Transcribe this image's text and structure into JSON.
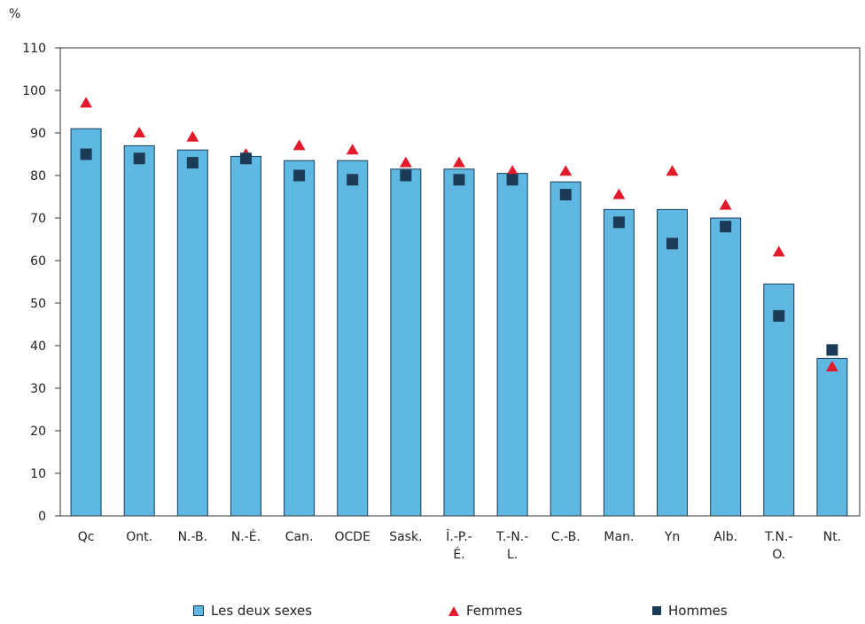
{
  "chart_data": {
    "type": "bar",
    "y_unit_label": "%",
    "ylim": [
      0,
      110
    ],
    "y_ticks": [
      0,
      10,
      20,
      30,
      40,
      50,
      60,
      70,
      80,
      90,
      100,
      110
    ],
    "grid": false,
    "legend_position": "bottom",
    "categories": [
      [
        "Qc"
      ],
      [
        "Ont."
      ],
      [
        "N.-B."
      ],
      [
        "N.-É."
      ],
      [
        "Can."
      ],
      [
        "OCDE"
      ],
      [
        "Sask."
      ],
      [
        "Î.-P.-",
        "É."
      ],
      [
        "T.-N.-",
        "L."
      ],
      [
        "C.-B."
      ],
      [
        "Man."
      ],
      [
        "Yn"
      ],
      [
        "Alb."
      ],
      [
        "T.N.-",
        "O."
      ],
      [
        "Nt."
      ]
    ],
    "series": [
      {
        "name": "Les deux sexes",
        "type": "bar",
        "color": "#5fb8e2",
        "values": [
          91,
          87,
          86,
          84.5,
          83.5,
          83.5,
          81.5,
          81.5,
          80.5,
          78.5,
          72,
          72,
          70,
          54.5,
          37
        ]
      },
      {
        "name": "Femmes",
        "type": "marker",
        "marker": "triangle",
        "color": "#e31a2c",
        "values": [
          97,
          90,
          89,
          85,
          87,
          86,
          83,
          83,
          81,
          81,
          75.5,
          81,
          73,
          62,
          35
        ]
      },
      {
        "name": "Hommes",
        "type": "marker",
        "marker": "square",
        "color": "#1c3b57",
        "values": [
          85,
          84,
          83,
          84,
          80,
          79,
          80,
          79,
          79,
          75.5,
          69,
          64,
          68,
          47,
          39
        ]
      }
    ]
  }
}
